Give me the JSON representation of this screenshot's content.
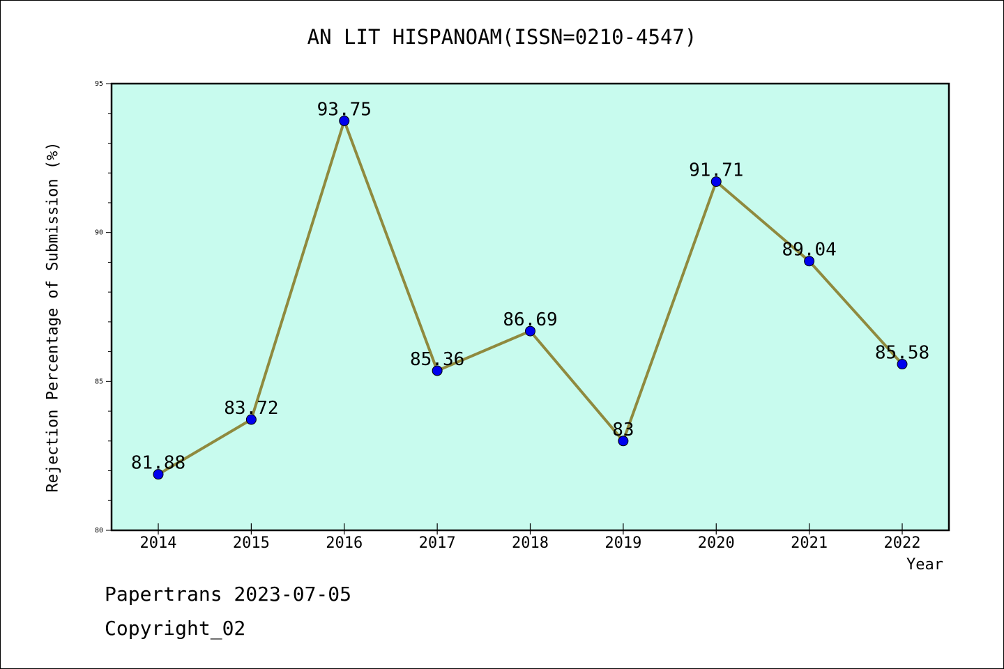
{
  "chart_data": {
    "type": "line",
    "title": "AN LIT HISPANOAM(ISSN=0210-4547)",
    "xlabel": "Year",
    "ylabel": "Rejection Percentage of Submission (%)",
    "categories": [
      "2014",
      "2015",
      "2016",
      "2017",
      "2018",
      "2019",
      "2020",
      "2021",
      "2022"
    ],
    "series": [
      {
        "values": [
          81.88,
          83.72,
          93.75,
          85.36,
          86.69,
          83,
          91.71,
          89.04,
          85.58
        ],
        "labels": [
          "81.88",
          "83.72",
          "93.75",
          "85.36",
          "86.69",
          "83",
          "91.71",
          "89.04",
          "85.58"
        ],
        "line_color": "#8f8a3e",
        "marker_color": "#0000ee"
      }
    ],
    "ylim": [
      80,
      95
    ],
    "yticks": [
      80,
      85,
      90,
      95
    ],
    "ytick_labels": [
      "80",
      "85",
      "90",
      "95"
    ],
    "plot_background": "#c8fbee",
    "grid": false,
    "legend": "none"
  },
  "footer": {
    "line1": "Papertrans 2023-07-05",
    "line2": "Copyright_02"
  }
}
